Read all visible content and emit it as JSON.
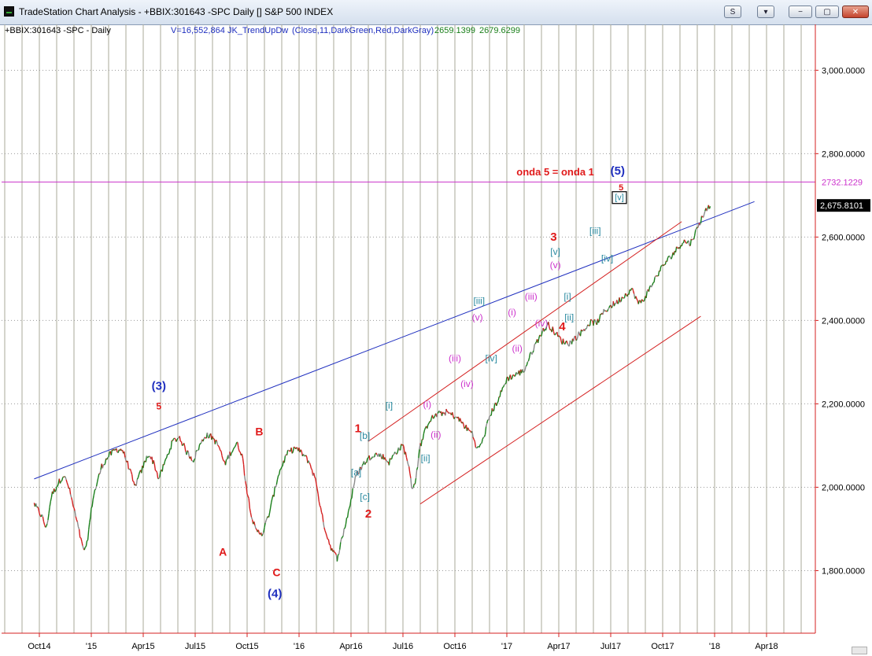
{
  "window": {
    "title": "TradeStation Chart Analysis - +BBIX:301643 -SPC Daily [] S&P 500 INDEX",
    "buttons": {
      "s_label": "S",
      "dropdown_label": "▾",
      "minimize_label": "−",
      "restore_label": "▢",
      "close_label": "✕"
    }
  },
  "chart_header": {
    "symbol_label": "+BBIX:301643 -SPC - Daily",
    "volume_text": "V=16,552,864",
    "indicator_text": "JK_TrendUpDw",
    "indicator_params": "(Close,11,DarkGreen,Red,DarkGray)",
    "value_1": "2659.1399",
    "value_2": "2679.6299"
  },
  "colors": {
    "up_bar": "#1a7f1a",
    "down_bar": "#d42020",
    "neutral_bar": "#8a8a8a",
    "grid": "#a9a99a",
    "trendline": "#1f2fbf",
    "channel": "#d42020",
    "level_line": "#cc33cc",
    "label_red": "#e01a1a",
    "label_blue": "#1f2fbf",
    "label_magenta": "#cc33cc",
    "label_teal": "#2a8aa0"
  },
  "chart_data": {
    "type": "line",
    "title": "",
    "xlabel": "",
    "ylabel": "",
    "ylim": [
      1650,
      3110
    ],
    "y_ticks": [
      1800,
      2000,
      2200,
      2400,
      2600,
      2800,
      3000
    ],
    "y_tick_labels": [
      "1,800.0000",
      "2,000.0000",
      "2,200.0000",
      "2,400.0000",
      "2,600.0000",
      "2,800.0000",
      "3,000.0000"
    ],
    "x_ticks": [
      "Oct14",
      "'15",
      "Apr15",
      "Jul15",
      "Oct15",
      "'16",
      "Apr16",
      "Jul16",
      "Oct16",
      "'17",
      "Apr17",
      "Jul17",
      "Oct17",
      "'18",
      "Apr18"
    ],
    "x_tick_months": [
      0,
      3,
      6,
      9,
      12,
      15,
      18,
      21,
      24,
      27,
      30,
      33,
      36,
      39,
      42
    ],
    "grid": true,
    "last_price_label": "2,675.8101",
    "level_line": {
      "value": 2732.1229,
      "label": "2732.1229"
    },
    "trendline": {
      "from": [
        -0.3,
        2020
      ],
      "to": [
        41.3,
        2685
      ]
    },
    "channel_upper": {
      "from": [
        19.0,
        2110
      ],
      "to": [
        37.1,
        2637
      ]
    },
    "channel_lower": {
      "from": [
        22.0,
        1960
      ],
      "to": [
        38.2,
        2410
      ]
    },
    "price_path": [
      [
        -0.3,
        1960
      ],
      [
        0.15,
        1930
      ],
      [
        0.4,
        1900
      ],
      [
        0.7,
        1980
      ],
      [
        1.1,
        2010
      ],
      [
        1.4,
        2030
      ],
      [
        1.7,
        2000
      ],
      [
        2.1,
        1930
      ],
      [
        2.5,
        1855
      ],
      [
        2.7,
        1850
      ],
      [
        3.1,
        1975
      ],
      [
        3.6,
        2050
      ],
      [
        4.0,
        2075
      ],
      [
        4.4,
        2090
      ],
      [
        4.8,
        2090
      ],
      [
        5.2,
        2045
      ],
      [
        5.5,
        2000
      ],
      [
        5.9,
        2040
      ],
      [
        6.3,
        2080
      ],
      [
        6.6,
        2060
      ],
      [
        6.9,
        2020
      ],
      [
        7.3,
        2065
      ],
      [
        7.7,
        2110
      ],
      [
        8.1,
        2120
      ],
      [
        8.5,
        2085
      ],
      [
        8.9,
        2065
      ],
      [
        9.2,
        2095
      ],
      [
        9.6,
        2125
      ],
      [
        10.0,
        2120
      ],
      [
        10.4,
        2095
      ],
      [
        10.7,
        2055
      ],
      [
        11.0,
        2080
      ],
      [
        11.4,
        2105
      ],
      [
        11.7,
        2080
      ],
      [
        12.0,
        1990
      ],
      [
        12.3,
        1925
      ],
      [
        12.5,
        1895
      ],
      [
        12.9,
        1890
      ],
      [
        13.3,
        1940
      ],
      [
        13.8,
        2030
      ],
      [
        14.3,
        2080
      ],
      [
        14.8,
        2095
      ],
      [
        15.2,
        2080
      ],
      [
        15.6,
        2060
      ],
      [
        16.0,
        2010
      ],
      [
        16.3,
        1935
      ],
      [
        16.6,
        1885
      ],
      [
        16.9,
        1850
      ],
      [
        17.2,
        1830
      ],
      [
        17.5,
        1880
      ],
      [
        17.9,
        1950
      ],
      [
        18.3,
        2030
      ],
      [
        18.8,
        2060
      ],
      [
        19.3,
        2080
      ],
      [
        19.8,
        2075
      ],
      [
        20.2,
        2060
      ],
      [
        20.6,
        2085
      ],
      [
        21.0,
        2100
      ],
      [
        21.3,
        2060
      ],
      [
        21.5,
        2000
      ],
      [
        21.7,
        2010
      ],
      [
        22.0,
        2100
      ],
      [
        22.5,
        2160
      ],
      [
        23.0,
        2175
      ],
      [
        23.5,
        2180
      ],
      [
        24.0,
        2170
      ],
      [
        24.3,
        2160
      ],
      [
        24.7,
        2140
      ],
      [
        25.0,
        2130
      ],
      [
        25.3,
        2090
      ],
      [
        25.6,
        2110
      ],
      [
        26.0,
        2170
      ],
      [
        26.5,
        2210
      ],
      [
        27.0,
        2260
      ],
      [
        27.5,
        2270
      ],
      [
        28.0,
        2280
      ],
      [
        28.5,
        2330
      ],
      [
        29.0,
        2370
      ],
      [
        29.4,
        2390
      ],
      [
        29.8,
        2370
      ],
      [
        30.2,
        2350
      ],
      [
        30.6,
        2345
      ],
      [
        31.0,
        2360
      ],
      [
        31.5,
        2380
      ],
      [
        31.8,
        2395
      ],
      [
        32.2,
        2395
      ],
      [
        32.6,
        2420
      ],
      [
        33.0,
        2435
      ],
      [
        33.4,
        2445
      ],
      [
        33.8,
        2460
      ],
      [
        34.2,
        2475
      ],
      [
        34.4,
        2460
      ],
      [
        34.6,
        2440
      ],
      [
        34.9,
        2450
      ],
      [
        35.3,
        2480
      ],
      [
        35.7,
        2510
      ],
      [
        36.0,
        2530
      ],
      [
        36.4,
        2550
      ],
      [
        36.8,
        2570
      ],
      [
        37.2,
        2590
      ],
      [
        37.6,
        2585
      ],
      [
        38.0,
        2620
      ],
      [
        38.3,
        2650
      ],
      [
        38.6,
        2670
      ],
      [
        38.8,
        2680
      ]
    ],
    "annotations": [
      {
        "text": "(3)",
        "x": 6.9,
        "y": 2234,
        "color": "blue",
        "size": 15
      },
      {
        "text": "5",
        "x": 6.9,
        "y": 2187,
        "color": "red",
        "size": 12
      },
      {
        "text": "B",
        "x": 12.7,
        "y": 2124,
        "color": "red",
        "size": 14
      },
      {
        "text": "A",
        "x": 10.6,
        "y": 1836,
        "color": "red",
        "size": 14
      },
      {
        "text": "C",
        "x": 13.7,
        "y": 1787,
        "color": "red",
        "size": 14
      },
      {
        "text": "(4)",
        "x": 13.6,
        "y": 1736,
        "color": "blue",
        "size": 15
      },
      {
        "text": "1",
        "x": 18.4,
        "y": 2132,
        "color": "red",
        "size": 15
      },
      {
        "text": "[b]",
        "x": 18.8,
        "y": 2116,
        "color": "teal",
        "size": 12
      },
      {
        "text": "[a]",
        "x": 18.3,
        "y": 2028,
        "color": "teal",
        "size": 12
      },
      {
        "text": "[c]",
        "x": 18.8,
        "y": 1970,
        "color": "teal",
        "size": 12
      },
      {
        "text": "2",
        "x": 19.0,
        "y": 1927,
        "color": "red",
        "size": 15
      },
      {
        "text": "[i]",
        "x": 20.2,
        "y": 2189,
        "color": "teal",
        "size": 12
      },
      {
        "text": "[ii]",
        "x": 22.3,
        "y": 2062,
        "color": "teal",
        "size": 12
      },
      {
        "text": "(i)",
        "x": 22.4,
        "y": 2191,
        "color": "magenta",
        "size": 12
      },
      {
        "text": "(ii)",
        "x": 22.9,
        "y": 2119,
        "color": "magenta",
        "size": 12
      },
      {
        "text": "(iii)",
        "x": 24.0,
        "y": 2302,
        "color": "magenta",
        "size": 12
      },
      {
        "text": "(iv)",
        "x": 24.7,
        "y": 2240,
        "color": "magenta",
        "size": 12
      },
      {
        "text": "[iii]",
        "x": 25.4,
        "y": 2439,
        "color": "teal",
        "size": 12
      },
      {
        "text": "(v)",
        "x": 25.3,
        "y": 2400,
        "color": "magenta",
        "size": 12
      },
      {
        "text": "[iv]",
        "x": 26.1,
        "y": 2302,
        "color": "teal",
        "size": 12
      },
      {
        "text": "(i)",
        "x": 27.3,
        "y": 2412,
        "color": "magenta",
        "size": 12
      },
      {
        "text": "(ii)",
        "x": 27.6,
        "y": 2325,
        "color": "magenta",
        "size": 12
      },
      {
        "text": "(iii)",
        "x": 28.4,
        "y": 2450,
        "color": "magenta",
        "size": 12
      },
      {
        "text": "(iv)",
        "x": 29.0,
        "y": 2386,
        "color": "magenta",
        "size": 12
      },
      {
        "text": "3",
        "x": 29.7,
        "y": 2591,
        "color": "red",
        "size": 15
      },
      {
        "text": "[v]",
        "x": 29.8,
        "y": 2557,
        "color": "teal",
        "size": 12
      },
      {
        "text": "(v)",
        "x": 29.8,
        "y": 2525,
        "color": "magenta",
        "size": 12
      },
      {
        "text": "[i]",
        "x": 30.5,
        "y": 2450,
        "color": "teal",
        "size": 12
      },
      {
        "text": "[ii]",
        "x": 30.6,
        "y": 2400,
        "color": "teal",
        "size": 12
      },
      {
        "text": "4",
        "x": 30.2,
        "y": 2376,
        "color": "red",
        "size": 15
      },
      {
        "text": "[iii]",
        "x": 32.1,
        "y": 2607,
        "color": "teal",
        "size": 12
      },
      {
        "text": "[iv]",
        "x": 32.8,
        "y": 2541,
        "color": "teal",
        "size": 12
      },
      {
        "text": "onda 5 = onda 1",
        "x": 29.8,
        "y": 2748,
        "color": "red",
        "size": 13
      },
      {
        "text": "(5)",
        "x": 33.4,
        "y": 2750,
        "color": "blue",
        "size": 15
      },
      {
        "text": "5",
        "x": 33.6,
        "y": 2712,
        "color": "red",
        "size": 11
      },
      {
        "text": "[v]",
        "x": 33.5,
        "y": 2688,
        "color": "teal",
        "size": 11,
        "boxed": true
      }
    ]
  }
}
